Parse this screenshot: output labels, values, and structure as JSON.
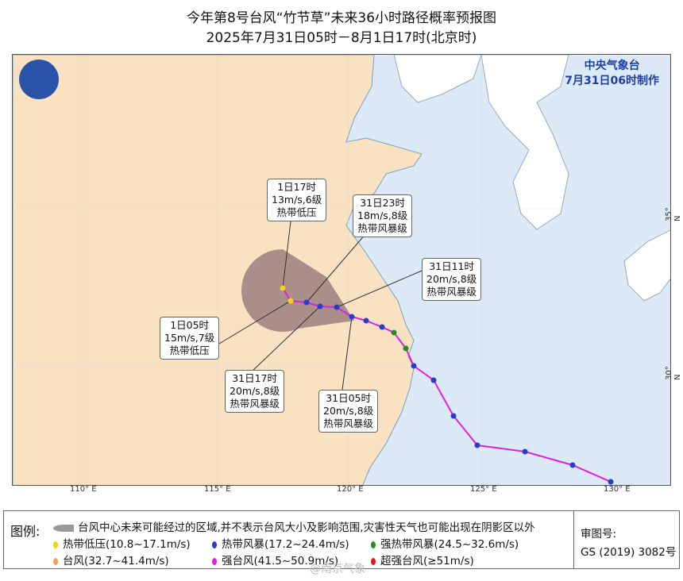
{
  "title": {
    "line1": "今年第8号台风“竹节草”未来36小时路径概率预报图",
    "line2": "2025年7月31日05时－8月1日17时(北京时)"
  },
  "agency": {
    "name": "中央气象台",
    "made": "7月31日06时制作"
  },
  "axes": {
    "lon": [
      "110° E",
      "115° E",
      "120° E",
      "125° E",
      "130° E"
    ],
    "lat": [
      "35° N",
      "30° N"
    ]
  },
  "forecast_labels": [
    {
      "time": "1日17时",
      "wind": "13m/s,6级",
      "level": "热带低压"
    },
    {
      "time": "31日23时",
      "wind": "18m/s,8级",
      "level": "热带风暴级"
    },
    {
      "time": "31日11时",
      "wind": "20m/s,8级",
      "level": "热带风暴级"
    },
    {
      "time": "1日05时",
      "wind": "15m/s,7级",
      "level": "热带低压"
    },
    {
      "time": "31日17时",
      "wind": "20m/s,8级",
      "level": "热带风暴级"
    },
    {
      "time": "31日05时",
      "wind": "20m/s,8级",
      "level": "热带风暴级"
    }
  ],
  "legend": {
    "label": "图例:",
    "cone": "台风中心未来可能经过的区域,并不表示台风大小及影响范围,灾害性天气也可能出现在阴影区以外",
    "items": [
      {
        "text": "热带低压(10.8~17.1m/s)",
        "color": "#f2d21a"
      },
      {
        "text": "热带风暴(17.2~24.4m/s)",
        "color": "#2a3cc8"
      },
      {
        "text": "强热带风暴(24.5~32.6m/s)",
        "color": "#2a8a2a"
      },
      {
        "text": "台风(32.7~41.4m/s)",
        "color": "#f0a050"
      },
      {
        "text": "强台风(41.5~50.9m/s)",
        "color": "#e020e0"
      },
      {
        "text": "超强台风(≥51m/s)",
        "color": "#e01818"
      }
    ],
    "review_label": "审图号:",
    "review_no": "GS (2019) 3082号"
  },
  "watermark": "@南京气象",
  "colors": {
    "land": "#f8e2c2",
    "sea": "#dce9f7",
    "cone": "#9c7f7f",
    "track": "#e020e0"
  }
}
